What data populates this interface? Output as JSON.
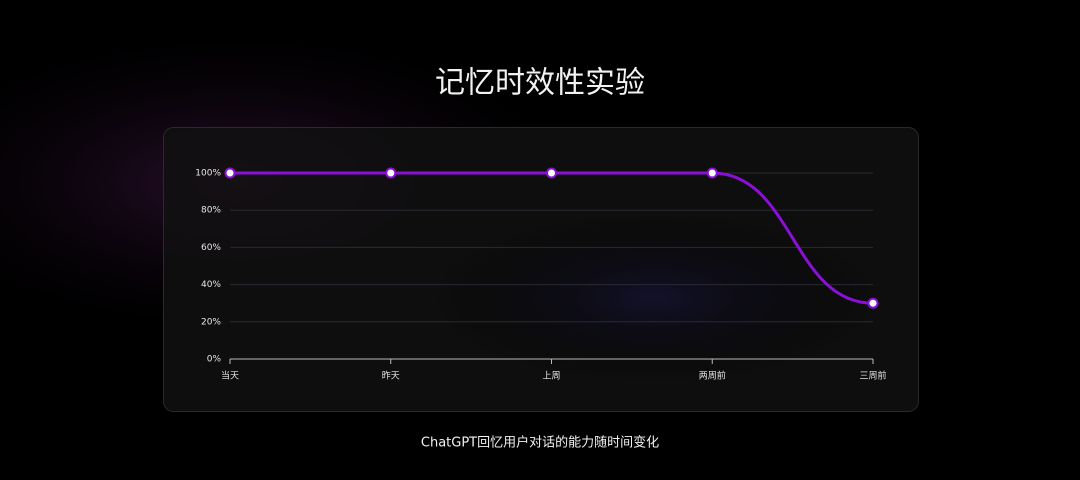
{
  "chart_data": {
    "type": "line",
    "title": "记忆时效性实验",
    "caption": "ChatGPT回忆用户对话的能力随时间变化",
    "categories": [
      "当天",
      "昨天",
      "上周",
      "两周前",
      "三周前"
    ],
    "values": [
      100,
      100,
      100,
      100,
      30
    ],
    "color": "#8a10d8",
    "ylim": [
      0,
      100
    ],
    "yticks": [
      {
        "value": 0,
        "label": "0%"
      },
      {
        "value": 20,
        "label": "20%"
      },
      {
        "value": 40,
        "label": "40%"
      },
      {
        "value": 60,
        "label": "60%"
      },
      {
        "value": 80,
        "label": "80%"
      },
      {
        "value": 100,
        "label": "100%"
      }
    ],
    "grid": true
  }
}
